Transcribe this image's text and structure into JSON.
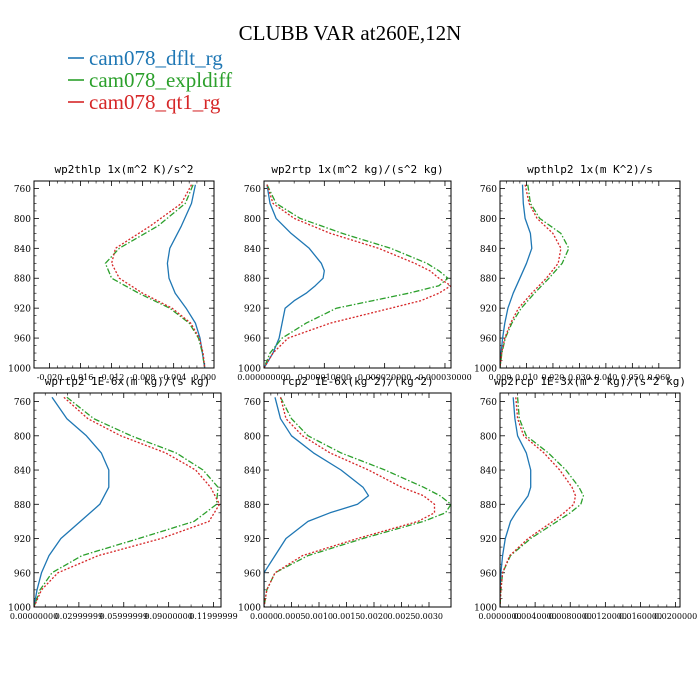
{
  "title": "CLUBB VAR at260E,12N",
  "legend": [
    {
      "name": "cam078_dflt_rg",
      "color": "#1f77b4",
      "dash": "solid"
    },
    {
      "name": "cam078_expldiff",
      "color": "#2ca02c",
      "dash": "dashdot"
    },
    {
      "name": "cam078_qt1_rg",
      "color": "#d62728",
      "dash": "dot"
    }
  ],
  "chart_data": [
    {
      "type": "line",
      "title": "wp2thlp  1x(m^2 K)/s^2",
      "ylim": [
        1000,
        750
      ],
      "yticks": [
        760,
        800,
        840,
        880,
        920,
        960,
        1000
      ],
      "xlim": [
        -0.022,
        0.0012
      ],
      "xticks": [
        -0.02,
        -0.016,
        -0.012,
        -0.008,
        -0.004,
        0.0
      ],
      "xticklabels": [
        "-0.020",
        "-0.016",
        "-0.012",
        "-0.008",
        "-0.004",
        "0.000"
      ],
      "y": [
        755,
        780,
        810,
        840,
        860,
        880,
        900,
        920,
        940,
        960,
        980,
        1000
      ],
      "series": [
        {
          "name": "cam078_dflt_rg",
          "values": [
            -0.0012,
            -0.0017,
            -0.003,
            -0.0045,
            -0.0048,
            -0.0046,
            -0.0038,
            -0.0024,
            -0.0012,
            -0.0006,
            -0.0003,
            0.0
          ]
        },
        {
          "name": "cam078_expldiff",
          "values": [
            -0.0015,
            -0.0025,
            -0.006,
            -0.011,
            -0.0128,
            -0.012,
            -0.0085,
            -0.0045,
            -0.002,
            -0.0008,
            -0.0003,
            0.0
          ]
        },
        {
          "name": "cam078_qt1_rg",
          "values": [
            -0.0017,
            -0.003,
            -0.007,
            -0.0115,
            -0.012,
            -0.011,
            -0.008,
            -0.0042,
            -0.0018,
            -0.0007,
            -0.0002,
            0.0
          ]
        }
      ]
    },
    {
      "type": "line",
      "title": "wp2rtp  1x(m^2 kg)/(s^2 kg)",
      "ylim": [
        1000,
        750
      ],
      "yticks": [
        760,
        800,
        840,
        880,
        920,
        960,
        1000
      ],
      "xlim": [
        0,
        3.1e-05
      ],
      "xticks": [
        0,
        1e-05,
        2e-05,
        3e-05
      ],
      "xticklabels": [
        "0.000000000",
        "0.000010000",
        "0.000020000",
        "0.000030000"
      ],
      "y": [
        755,
        780,
        800,
        820,
        840,
        860,
        870,
        880,
        890,
        900,
        910,
        920,
        940,
        960,
        980,
        1000
      ],
      "series": [
        {
          "name": "cam078_dflt_rg",
          "values": [
            5e-07,
            1e-06,
            2e-06,
            4.5e-06,
            7.5e-06,
            9.5e-06,
            1e-05,
            9.8e-06,
            8.5e-06,
            7e-06,
            5e-06,
            3.5e-06,
            3e-06,
            2.5e-06,
            1.5e-06,
            0.0
          ]
        },
        {
          "name": "cam078_expldiff",
          "values": [
            5e-07,
            2e-06,
            6e-06,
            1.3e-05,
            2.1e-05,
            2.7e-05,
            2.9e-05,
            3.05e-05,
            2.9e-05,
            2.4e-05,
            1.8e-05,
            1.2e-05,
            7e-06,
            3e-06,
            1e-06,
            0.0
          ]
        },
        {
          "name": "cam078_qt1_rg",
          "values": [
            5e-07,
            1.5e-06,
            5e-06,
            1.1e-05,
            1.9e-05,
            2.5e-05,
            2.75e-05,
            2.9e-05,
            3.1e-05,
            2.9e-05,
            2.6e-05,
            2.1e-05,
            1.1e-05,
            4e-06,
            1.5e-06,
            0.0
          ]
        }
      ]
    },
    {
      "type": "line",
      "title": "wpthlp2  1x(m K^2)/s",
      "ylim": [
        1000,
        750
      ],
      "yticks": [
        760,
        800,
        840,
        880,
        920,
        960,
        1000
      ],
      "xlim": [
        0,
        0.068
      ],
      "xticks": [
        0,
        0.01,
        0.02,
        0.03,
        0.04,
        0.05,
        0.06
      ],
      "xticklabels": [
        "0.000",
        "0.010",
        "0.020",
        "0.030",
        "0.040",
        "0.050",
        "0.060"
      ],
      "y": [
        755,
        780,
        800,
        820,
        840,
        860,
        880,
        900,
        920,
        940,
        960,
        980,
        1000
      ],
      "series": [
        {
          "name": "cam078_dflt_rg",
          "values": [
            0.0085,
            0.0088,
            0.0095,
            0.0115,
            0.012,
            0.01,
            0.0075,
            0.005,
            0.003,
            0.0018,
            0.001,
            0.0004,
            0.0
          ]
        },
        {
          "name": "cam078_expldiff",
          "values": [
            0.0105,
            0.0115,
            0.015,
            0.023,
            0.026,
            0.0235,
            0.0185,
            0.013,
            0.008,
            0.0045,
            0.002,
            0.0007,
            0.0
          ]
        },
        {
          "name": "cam078_qt1_rg",
          "values": [
            0.0095,
            0.011,
            0.014,
            0.02,
            0.023,
            0.022,
            0.0175,
            0.012,
            0.007,
            0.004,
            0.0018,
            0.0006,
            0.0
          ]
        }
      ]
    },
    {
      "type": "line",
      "title": "wprtp2  1E-6x(m kg)/(s kg)",
      "ylim": [
        1000,
        750
      ],
      "yticks": [
        760,
        800,
        840,
        880,
        920,
        960,
        1000
      ],
      "xlim": [
        0,
        0.125
      ],
      "xticks": [
        0,
        0.03,
        0.06,
        0.09,
        0.12
      ],
      "xticklabels": [
        "0.00000000",
        "0.02999999",
        "0.05999999",
        "0.09000000",
        "0.11999999"
      ],
      "y": [
        755,
        780,
        800,
        820,
        840,
        860,
        880,
        900,
        920,
        940,
        960,
        980,
        1000
      ],
      "series": [
        {
          "name": "cam078_dflt_rg",
          "values": [
            0.012,
            0.022,
            0.035,
            0.045,
            0.05,
            0.05,
            0.044,
            0.031,
            0.018,
            0.01,
            0.005,
            0.002,
            0.0
          ]
        },
        {
          "name": "cam078_expldiff",
          "values": [
            0.022,
            0.04,
            0.065,
            0.095,
            0.113,
            0.123,
            0.122,
            0.107,
            0.07,
            0.032,
            0.012,
            0.004,
            0.0
          ]
        },
        {
          "name": "cam078_qt1_rg",
          "values": [
            0.02,
            0.036,
            0.058,
            0.088,
            0.108,
            0.118,
            0.124,
            0.117,
            0.085,
            0.043,
            0.016,
            0.005,
            0.0
          ]
        }
      ]
    },
    {
      "type": "line",
      "title": "rcp2  1E-6x(kg^2)/(kg^2)",
      "ylim": [
        1000,
        750
      ],
      "yticks": [
        760,
        800,
        840,
        880,
        920,
        960,
        1000
      ],
      "xlim": [
        0,
        0.0034
      ],
      "xticks": [
        0,
        0.0005,
        0.001,
        0.0015,
        0.002,
        0.0025,
        0.003
      ],
      "xticklabels": [
        "0.0000",
        "0.0005",
        "0.0010",
        "0.0015",
        "0.0020",
        "0.0025",
        "0.0030"
      ],
      "y": [
        755,
        780,
        800,
        820,
        840,
        860,
        870,
        880,
        890,
        900,
        920,
        940,
        960,
        980,
        1000
      ],
      "series": [
        {
          "name": "cam078_dflt_rg",
          "values": [
            0.0002,
            0.0003,
            0.0005,
            0.0009,
            0.0014,
            0.0018,
            0.0019,
            0.0017,
            0.0012,
            0.0008,
            0.0004,
            0.0002,
            0.0,
            0.0,
            0.0
          ]
        },
        {
          "name": "cam078_expldiff",
          "values": [
            0.0003,
            0.0005,
            0.0008,
            0.0014,
            0.0022,
            0.0029,
            0.0032,
            0.0034,
            0.0033,
            0.0029,
            0.0018,
            0.0008,
            0.0002,
            5e-05,
            0.0
          ]
        },
        {
          "name": "cam078_qt1_rg",
          "values": [
            0.0003,
            0.0004,
            0.0007,
            0.0012,
            0.0019,
            0.0025,
            0.0029,
            0.0031,
            0.0031,
            0.0028,
            0.0017,
            0.0007,
            0.0002,
            5e-05,
            0.0
          ]
        }
      ]
    },
    {
      "type": "line",
      "title": "wp2rcp  1E-3x(m^2 kg)/(s^2 kg)",
      "ylim": [
        1000,
        750
      ],
      "yticks": [
        760,
        800,
        840,
        880,
        920,
        960,
        1000
      ],
      "xlim": [
        0,
        0.0205
      ],
      "xticks": [
        0,
        0.004,
        0.008,
        0.012,
        0.016,
        0.02
      ],
      "xticklabels": [
        "0.0000000",
        "0.0040000",
        "0.0080000",
        "0.0120000",
        "0.0160000",
        "0.0200000"
      ],
      "y": [
        755,
        780,
        800,
        820,
        840,
        860,
        870,
        880,
        890,
        900,
        920,
        940,
        960,
        980,
        1000
      ],
      "series": [
        {
          "name": "cam078_dflt_rg",
          "values": [
            0.0015,
            0.0017,
            0.002,
            0.003,
            0.0035,
            0.0035,
            0.0032,
            0.0025,
            0.0018,
            0.0012,
            0.0006,
            0.0003,
            0.0001,
            0.0,
            0.0
          ]
        },
        {
          "name": "cam078_expldiff",
          "values": [
            0.002,
            0.0022,
            0.003,
            0.0055,
            0.0075,
            0.009,
            0.0095,
            0.0092,
            0.008,
            0.0065,
            0.0035,
            0.0012,
            0.0003,
            0.0001,
            0.0
          ]
        },
        {
          "name": "cam078_qt1_rg",
          "values": [
            0.0018,
            0.002,
            0.0027,
            0.005,
            0.0068,
            0.0082,
            0.0086,
            0.0084,
            0.0073,
            0.006,
            0.0032,
            0.0011,
            0.0003,
            0.0001,
            0.0
          ]
        }
      ]
    }
  ]
}
